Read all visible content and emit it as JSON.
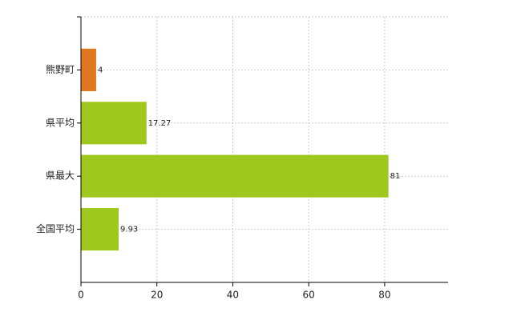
{
  "chart_data": {
    "type": "hbar",
    "categories": [
      "熊野町",
      "県平均",
      "県最大",
      "全国平均"
    ],
    "values": [
      4,
      17.27,
      81,
      9.93
    ],
    "colors": [
      "#e07820",
      "#9fc81e",
      "#9fc81e",
      "#9fc81e"
    ],
    "xlim": [
      0,
      96.7
    ],
    "xticks": [
      0,
      20,
      40,
      60,
      80
    ],
    "grid": true
  }
}
